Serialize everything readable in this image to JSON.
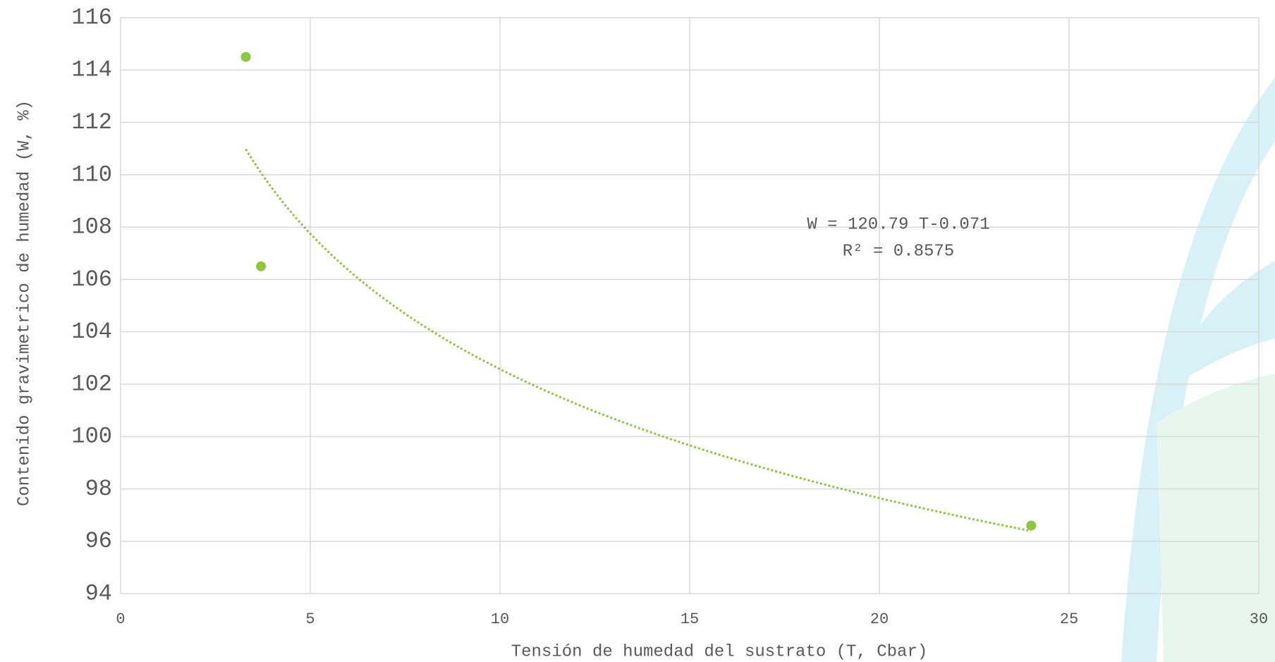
{
  "chart_data": {
    "type": "scatter",
    "x_label": "Tensión de humedad del sustrato (T, Cbar)",
    "y_label": "Contenido gravimetrico de humedad (W, %)",
    "x": [
      3.3,
      3.7,
      24
    ],
    "series": [
      {
        "color": "#8dc63f",
        "values": [
          114.5,
          106.5,
          96.6
        ]
      }
    ],
    "xlim": [
      0,
      30
    ],
    "xticks": [
      0,
      5,
      10,
      15,
      20,
      25,
      30
    ],
    "ylim": [
      94,
      116
    ],
    "yticks": [
      94,
      96,
      98,
      100,
      102,
      104,
      106,
      108,
      110,
      112,
      114,
      116
    ],
    "grid": true,
    "trendline": {
      "type": "power",
      "coefficient": 120.79,
      "exponent": -0.071,
      "color": "#8dc63f"
    },
    "annotations": [
      "W = 120.79 T-0.071",
      "R² = 0.8575"
    ]
  }
}
